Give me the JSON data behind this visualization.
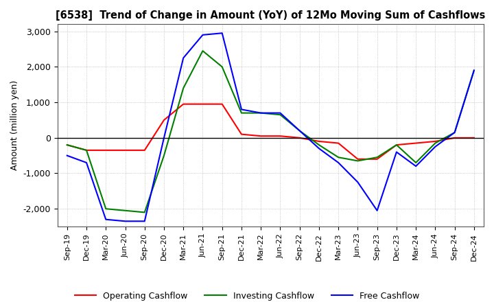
{
  "title": "[6538]  Trend of Change in Amount (YoY) of 12Mo Moving Sum of Cashflows",
  "ylabel": "Amount (million yen)",
  "ylim": [
    -2500,
    3200
  ],
  "yticks": [
    -2000,
    -1000,
    0,
    1000,
    2000,
    3000
  ],
  "background_color": "#ffffff",
  "grid_color": "#aaaaaa",
  "x_labels": [
    "Sep-19",
    "Dec-19",
    "Mar-20",
    "Jun-20",
    "Sep-20",
    "Dec-20",
    "Mar-21",
    "Jun-21",
    "Sep-21",
    "Dec-21",
    "Mar-22",
    "Jun-22",
    "Sep-22",
    "Dec-22",
    "Mar-23",
    "Jun-23",
    "Sep-23",
    "Dec-23",
    "Mar-24",
    "Jun-24",
    "Sep-24",
    "Dec-24"
  ],
  "operating": [
    -200,
    -350,
    -350,
    -350,
    -350,
    500,
    950,
    950,
    950,
    100,
    50,
    50,
    0,
    -100,
    -150,
    -600,
    -600,
    -200,
    -150,
    -100,
    0,
    0
  ],
  "investing": [
    -200,
    -350,
    -2000,
    -2050,
    -2100,
    -500,
    1400,
    2450,
    2000,
    700,
    700,
    650,
    200,
    -200,
    -550,
    -650,
    -550,
    -200,
    -700,
    -150,
    150,
    1900
  ],
  "free": [
    -500,
    -700,
    -2300,
    -2350,
    -2350,
    0,
    2250,
    2900,
    2950,
    800,
    700,
    700,
    200,
    -300,
    -700,
    -1250,
    -2050,
    -400,
    -800,
    -250,
    150,
    1900
  ],
  "line_colors": {
    "operating": "#ff0000",
    "investing": "#008000",
    "free": "#0000ff"
  },
  "legend_labels": [
    "Operating Cashflow",
    "Investing Cashflow",
    "Free Cashflow"
  ]
}
